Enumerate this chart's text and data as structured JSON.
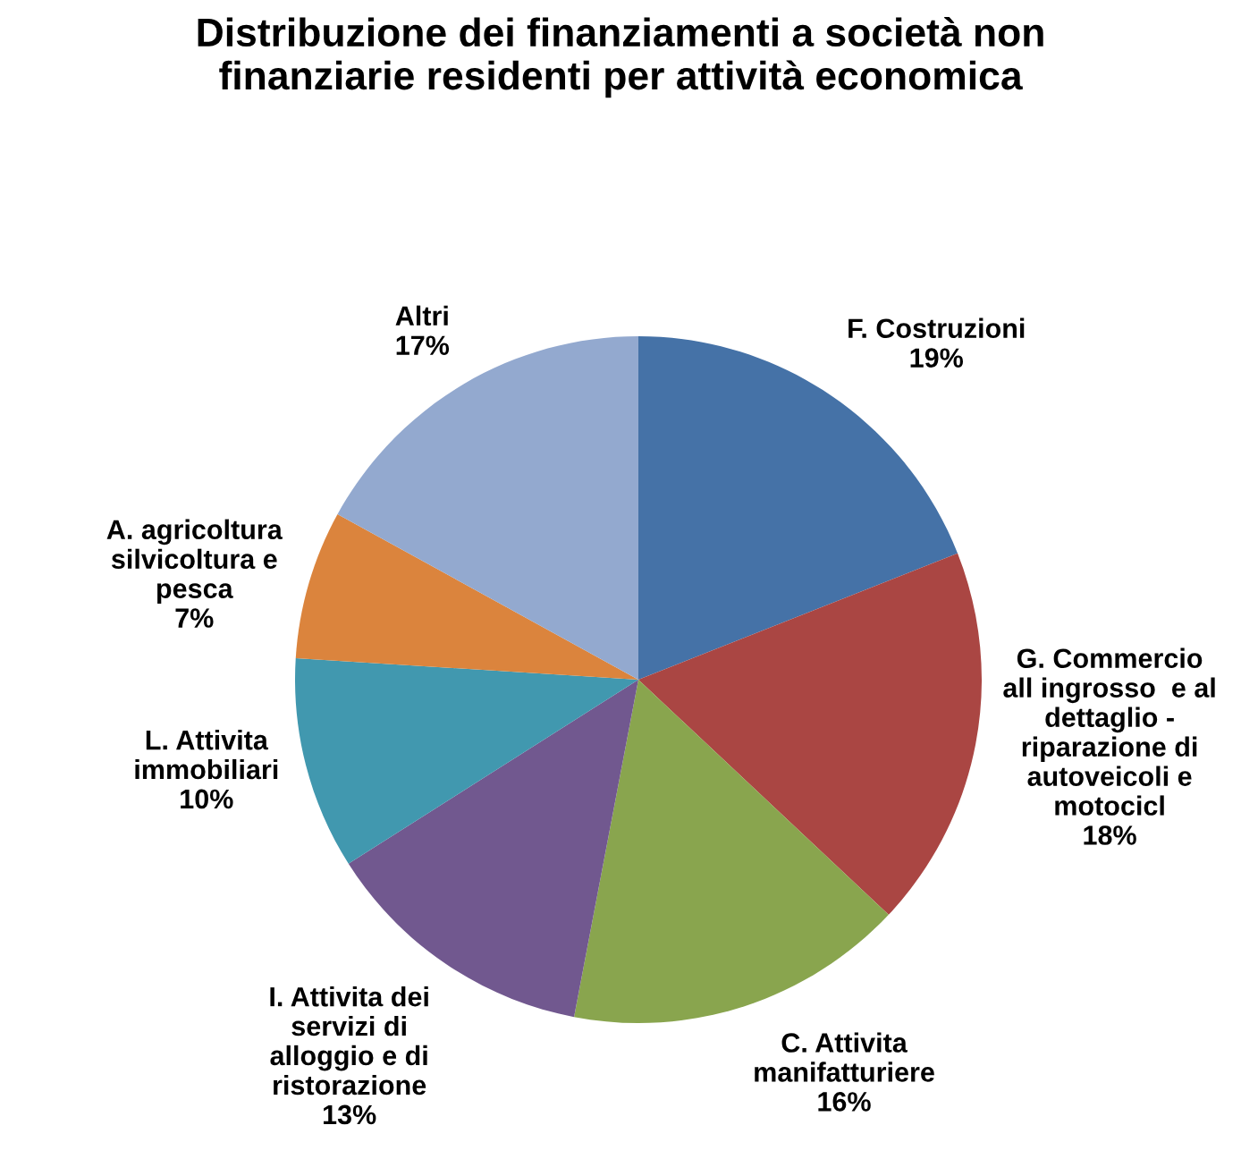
{
  "chart_data": {
    "type": "pie",
    "title": "Distribuzione dei finanziamenti a società non\nfinanziarie residenti per attività economica",
    "categories": [
      "F. Costruzioni",
      "G. Commercio\nall ingrosso  e al\ndettaglio -\nriparazione di\nautoveicoli e\nmotocicl",
      "C. Attivita\nmanifatturiere",
      "I. Attivita dei\nservizi di\nalloggio e di\nristorazione",
      "L. Attivita\nimmobiliari",
      "A. agricoltura\nsilvicoltura e\npesca",
      "Altri"
    ],
    "values": [
      19,
      18,
      16,
      13,
      10,
      7,
      17
    ],
    "value_labels": [
      "19%",
      "18%",
      "16%",
      "13%",
      "10%",
      "7%",
      "17%"
    ],
    "colors": [
      "#4572a7",
      "#aa4643",
      "#89a54e",
      "#71588f",
      "#4198af",
      "#db843d",
      "#93a9cf"
    ],
    "legend": false
  }
}
